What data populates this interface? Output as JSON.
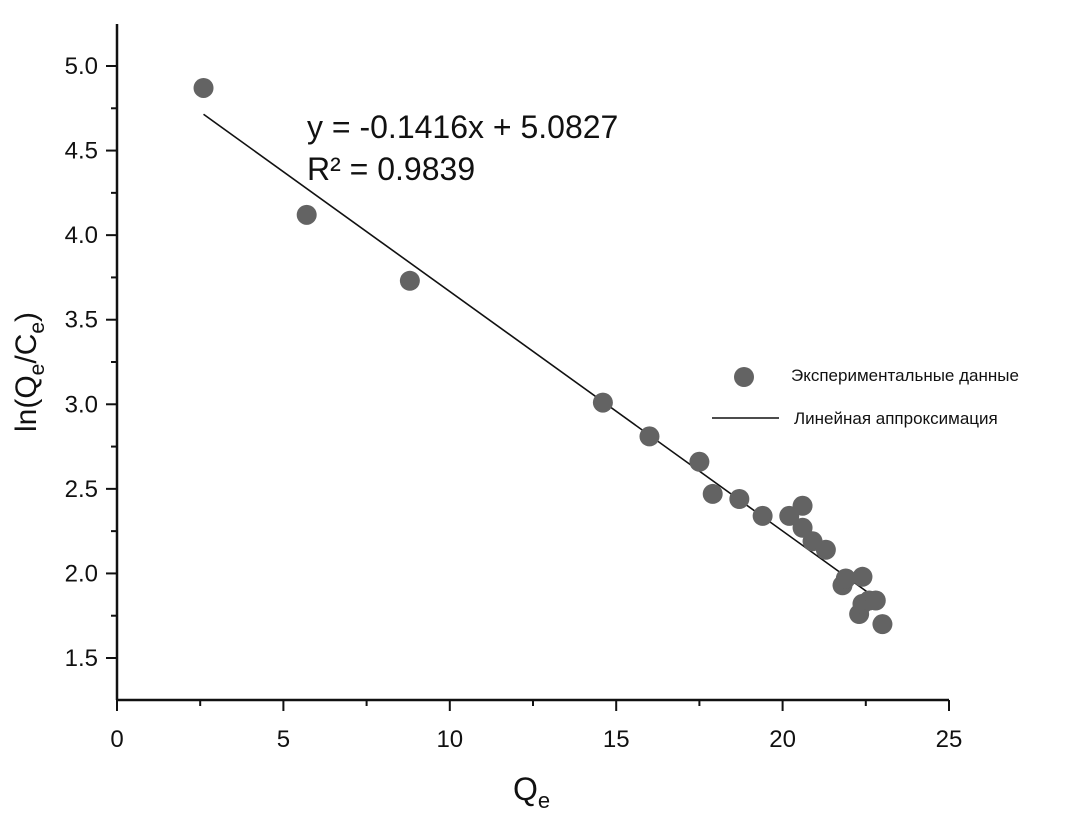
{
  "chart_data": {
    "type": "scatter",
    "xlabel": "Q",
    "xlabel_sub": "e",
    "ylabel_parts": [
      "ln(Q",
      "e",
      "/C",
      "e",
      ")"
    ],
    "xlim": [
      0,
      25
    ],
    "ylim": [
      1.25,
      5.25
    ],
    "xticks": [
      0,
      5,
      10,
      15,
      20,
      25
    ],
    "xtick_labels": [
      "0",
      "5",
      "10",
      "15",
      "20",
      "25"
    ],
    "yticks": [
      1.5,
      2.0,
      2.5,
      3.0,
      3.5,
      4.0,
      4.5,
      5.0
    ],
    "ytick_labels": [
      "1.5",
      "2.0",
      "2.5",
      "3.0",
      "3.5",
      "4.0",
      "4.5",
      "5.0"
    ],
    "grid": false,
    "legend_position": "right",
    "series": [
      {
        "name": "Экспериментальные данные",
        "kind": "scatter",
        "color": "#636363",
        "points": [
          [
            2.6,
            4.87
          ],
          [
            5.7,
            4.12
          ],
          [
            8.8,
            3.73
          ],
          [
            14.6,
            3.01
          ],
          [
            16.0,
            2.81
          ],
          [
            17.5,
            2.66
          ],
          [
            17.9,
            2.47
          ],
          [
            18.7,
            2.44
          ],
          [
            19.4,
            2.34
          ],
          [
            20.2,
            2.34
          ],
          [
            20.6,
            2.27
          ],
          [
            20.6,
            2.4
          ],
          [
            20.9,
            2.19
          ],
          [
            21.3,
            2.14
          ],
          [
            21.8,
            1.93
          ],
          [
            21.9,
            1.97
          ],
          [
            22.3,
            1.76
          ],
          [
            22.4,
            1.98
          ],
          [
            22.4,
            1.82
          ],
          [
            22.6,
            1.84
          ],
          [
            22.8,
            1.84
          ],
          [
            23.0,
            1.7
          ]
        ]
      },
      {
        "name": "Линейная аппроксимация",
        "kind": "line",
        "color": "#111111",
        "slope": -0.1416,
        "intercept": 5.0827,
        "x_range": [
          2.6,
          23.0
        ]
      }
    ],
    "annotations": [
      "y = -0.1416x + 5.0827",
      "R² = 0.9839"
    ]
  }
}
